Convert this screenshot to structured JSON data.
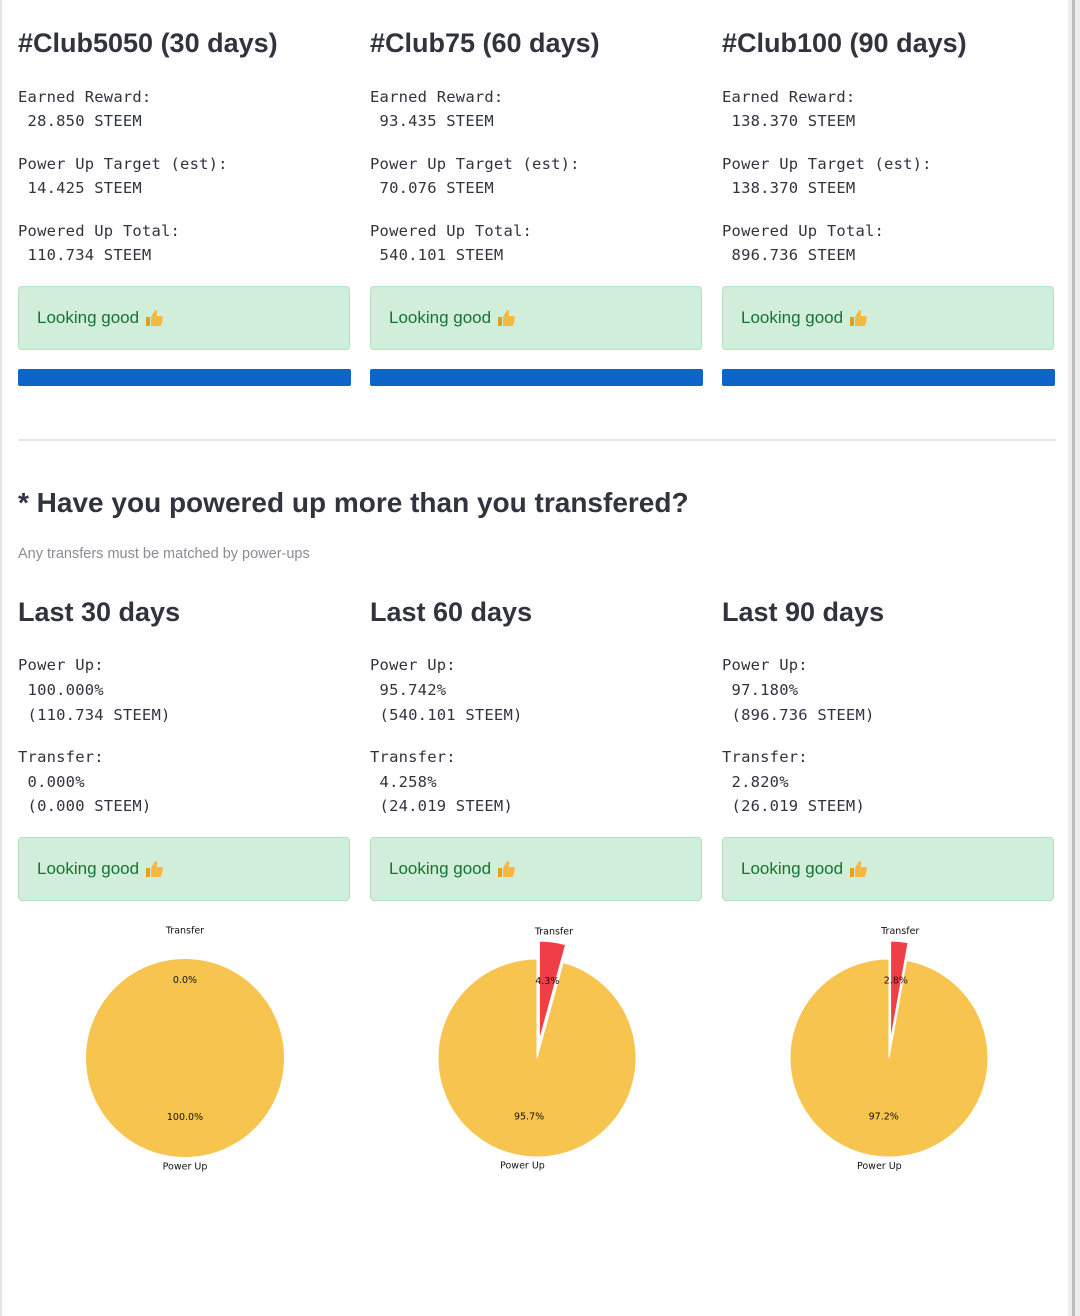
{
  "clubs": [
    {
      "title": "#Club5050 (30 days)",
      "earned_label": "Earned Reward:",
      "earned_value": " 28.850 STEEM",
      "target_label": "Power Up Target (est):",
      "target_value": " 14.425 STEEM",
      "total_label": "Powered Up Total:",
      "total_value": " 110.734 STEEM",
      "status": "Looking good",
      "progress": 1.0
    },
    {
      "title": "#Club75 (60 days)",
      "earned_label": "Earned Reward:",
      "earned_value": " 93.435 STEEM",
      "target_label": "Power Up Target (est):",
      "target_value": " 70.076 STEEM",
      "total_label": "Powered Up Total:",
      "total_value": " 540.101 STEEM",
      "status": "Looking good",
      "progress": 1.0
    },
    {
      "title": "#Club100 (90 days)",
      "earned_label": "Earned Reward:",
      "earned_value": " 138.370 STEEM",
      "target_label": "Power Up Target (est):",
      "target_value": " 138.370 STEEM",
      "total_label": "Powered Up Total:",
      "total_value": " 896.736 STEEM",
      "status": "Looking good",
      "progress": 1.0
    }
  ],
  "section": {
    "heading": "* Have you powered up more than you transfered?",
    "caption": "Any transfers must be matched by power-ups"
  },
  "periods": [
    {
      "title": "Last 30 days",
      "powerup_label": "Power Up:",
      "powerup_pct": " 100.000%",
      "powerup_amount": " (110.734 STEEM)",
      "transfer_label": "Transfer:",
      "transfer_pct": " 0.000%",
      "transfer_amount": " (0.000 STEEM)",
      "status": "Looking good"
    },
    {
      "title": "Last 60 days",
      "powerup_label": "Power Up:",
      "powerup_pct": " 95.742%",
      "powerup_amount": " (540.101 STEEM)",
      "transfer_label": "Transfer:",
      "transfer_pct": " 4.258%",
      "transfer_amount": " (24.019 STEEM)",
      "status": "Looking good"
    },
    {
      "title": "Last 90 days",
      "powerup_label": "Power Up:",
      "powerup_pct": " 97.180%",
      "powerup_amount": " (896.736 STEEM)",
      "transfer_label": "Transfer:",
      "transfer_pct": " 2.820%",
      "transfer_amount": " (26.019 STEEM)",
      "status": "Looking good"
    }
  ],
  "colors": {
    "powerup": "#f7c44f",
    "transfer": "#ef3e46",
    "progress": "#0f64c7",
    "alert_bg": "#d1eedb",
    "alert_text": "#177233"
  },
  "icons": {
    "status": "thumbs-up-icon"
  },
  "chart_data": [
    {
      "type": "pie",
      "labels": [
        "Transfer",
        "Power Up"
      ],
      "values": [
        0.0,
        100.0
      ],
      "pct_labels": [
        "0.0%",
        "100.0%"
      ],
      "explode_transfer": true
    },
    {
      "type": "pie",
      "labels": [
        "Transfer",
        "Power Up"
      ],
      "values": [
        4.258,
        95.742
      ],
      "pct_labels": [
        "4.3%",
        "95.7%"
      ],
      "explode_transfer": true
    },
    {
      "type": "pie",
      "labels": [
        "Transfer",
        "Power Up"
      ],
      "values": [
        2.82,
        97.18
      ],
      "pct_labels": [
        "2.8%",
        "97.2%"
      ],
      "explode_transfer": true
    }
  ]
}
